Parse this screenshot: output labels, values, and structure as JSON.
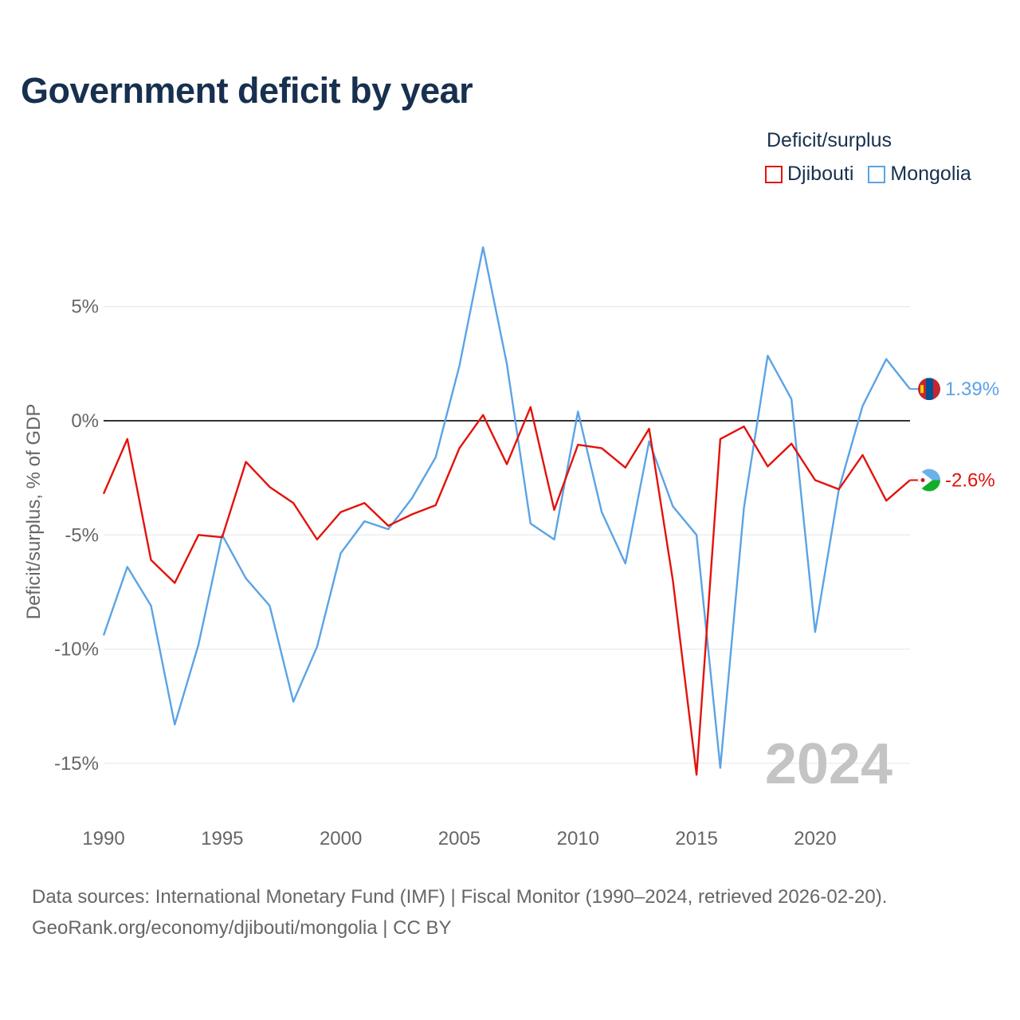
{
  "title": "Government deficit by year",
  "legend": {
    "title": "Deficit/surplus",
    "items": [
      {
        "name": "Djibouti",
        "color": "#e3120b"
      },
      {
        "name": "Mongolia",
        "color": "#5ba3e6"
      }
    ]
  },
  "chart_data": {
    "type": "line",
    "title": "Government deficit by year",
    "xlabel": "",
    "ylabel": "Deficit/surplus, % of GDP",
    "xlim": [
      1990,
      2024
    ],
    "ylim": [
      -17,
      9
    ],
    "x_ticks": [
      1990,
      1995,
      2000,
      2005,
      2010,
      2015,
      2020
    ],
    "y_ticks": [
      5,
      0,
      -5,
      -10,
      -15
    ],
    "y_tick_labels": [
      "5%",
      "0%",
      "-5%",
      "-10%",
      "-15%"
    ],
    "grid": true,
    "legend_position": "top-right",
    "year_watermark": "2024",
    "x": [
      1990,
      1991,
      1992,
      1993,
      1994,
      1995,
      1996,
      1997,
      1998,
      1999,
      2000,
      2001,
      2002,
      2003,
      2004,
      2005,
      2006,
      2007,
      2008,
      2009,
      2010,
      2011,
      2012,
      2013,
      2014,
      2015,
      2016,
      2017,
      2018,
      2019,
      2020,
      2021,
      2022,
      2023,
      2024
    ],
    "series": [
      {
        "name": "Djibouti",
        "color": "#e3120b",
        "end_label": "-2.6%",
        "values": [
          -3.2,
          -0.8,
          -6.1,
          -7.1,
          -5.0,
          -5.1,
          -1.8,
          -2.9,
          -3.6,
          -5.2,
          -4.0,
          -3.6,
          -4.6,
          -4.1,
          -3.7,
          -1.2,
          0.25,
          -1.9,
          0.6,
          -3.9,
          -1.05,
          -1.2,
          -2.05,
          -0.35,
          -7.0,
          -15.5,
          -0.8,
          -0.25,
          -2.0,
          -1.0,
          -2.6,
          -3.0,
          -1.5,
          -3.5,
          -2.6
        ]
      },
      {
        "name": "Mongolia",
        "color": "#5ba3e6",
        "end_label": "1.39%",
        "values": [
          -9.4,
          -6.4,
          -8.1,
          -13.3,
          -9.8,
          -5.0,
          -6.9,
          -8.1,
          -12.3,
          -9.9,
          -5.8,
          -4.4,
          -4.75,
          -3.4,
          -1.6,
          2.4,
          7.6,
          2.5,
          -4.5,
          -5.2,
          0.4,
          -4.0,
          -6.25,
          -0.9,
          -3.75,
          -5.0,
          -15.2,
          -3.8,
          2.85,
          0.95,
          -9.25,
          -3.0,
          0.65,
          2.7,
          1.39
        ]
      }
    ]
  },
  "footer": {
    "line1": "Data sources: International Monetary Fund (IMF) | Fiscal Monitor (1990–2024, retrieved 2026-02-20).",
    "line2": "GeoRank.org/economy/djibouti/mongolia | CC BY"
  }
}
